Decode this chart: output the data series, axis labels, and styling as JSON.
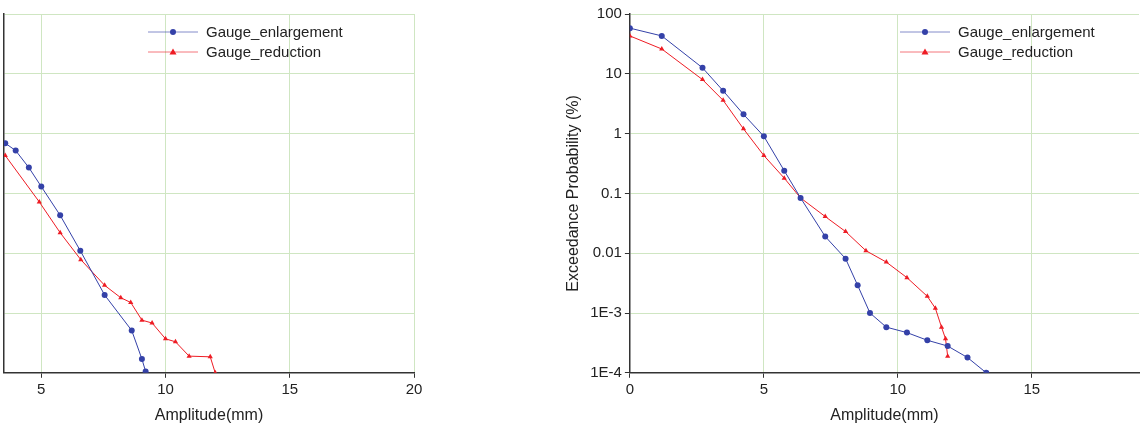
{
  "chart_data": [
    {
      "type": "line",
      "xlabel": "Amplitude(mm)",
      "xlim": [
        3.5,
        20
      ],
      "xticks": [
        5,
        10,
        15,
        20
      ],
      "ylim": [
        0.0001,
        100
      ],
      "yticks": [
        100,
        10,
        1,
        0.1,
        0.01,
        0.001,
        0.0001
      ],
      "log": "y",
      "grid": true,
      "legend": "top right",
      "tick_labels": "x",
      "series": [
        {
          "name": "Gauge_enlargement",
          "color": "#3441a8",
          "marker": "circle",
          "x": [
            3.55,
            3.97,
            4.5,
            5,
            5.76,
            6.57,
            7.55,
            8.64,
            9.05,
            9.2
          ],
          "values": [
            0.69,
            0.52,
            0.27,
            0.13,
            0.043,
            0.011,
            0.002,
            0.00051,
            0.00017,
            0.000105
          ]
        },
        {
          "name": "Gauge_reduction",
          "color": "#ee1c24",
          "marker": "triangle",
          "x": [
            3.55,
            4.92,
            5.76,
            6.59,
            7.55,
            8.2,
            8.6,
            9.05,
            9.46,
            10,
            10.4,
            10.95,
            11.8,
            12
          ],
          "values": [
            0.43,
            0.072,
            0.022,
            0.0078,
            0.0029,
            0.0018,
            0.0015,
            0.00076,
            0.00068,
            0.00037,
            0.00033,
            0.00019,
            0.000185,
            0.0001
          ]
        }
      ]
    },
    {
      "type": "line",
      "xlabel": "Amplitude(mm)",
      "ylabel": "Exceedance Probability (%)",
      "xlim": [
        0,
        19
      ],
      "xticks": [
        0,
        5,
        10,
        15
      ],
      "ylim": [
        0.0001,
        100
      ],
      "yticks": [
        100,
        10,
        1,
        0.1,
        0.01,
        {
          "value": 0.001,
          "label": "1E-3"
        },
        {
          "value": 0.0001,
          "label": "1E-4"
        }
      ],
      "log": "y",
      "grid": true,
      "legend": "top right",
      "series": [
        {
          "name": "Gauge_enlargement",
          "color": "#3441a8",
          "marker": "circle",
          "x": [
            0,
            1.19,
            2.71,
            3.48,
            4.24,
            5,
            5.76,
            6.37,
            7.29,
            8.05,
            8.5,
            8.96,
            9.57,
            10.34,
            11.1,
            11.86,
            12.6,
            13.3
          ],
          "values": [
            58,
            43,
            12.6,
            5.2,
            2.1,
            0.9,
            0.24,
            0.084,
            0.019,
            0.0081,
            0.0029,
            0.001,
            0.00058,
            0.00047,
            0.00035,
            0.00028,
            0.00018,
            0.0001
          ]
        },
        {
          "name": "Gauge_reduction",
          "color": "#ee1c24",
          "marker": "triangle",
          "x": [
            0,
            1.19,
            2.71,
            3.48,
            4.24,
            5,
            5.76,
            6.37,
            7.29,
            8.05,
            8.81,
            9.57,
            10.34,
            11.1,
            11.4,
            11.63,
            11.78,
            11.86
          ],
          "values": [
            43,
            26,
            8,
            3.6,
            1.2,
            0.43,
            0.18,
            0.084,
            0.041,
            0.023,
            0.011,
            0.0071,
            0.0039,
            0.0019,
            0.0012,
            0.00058,
            0.00037,
            0.00019
          ]
        }
      ]
    }
  ]
}
